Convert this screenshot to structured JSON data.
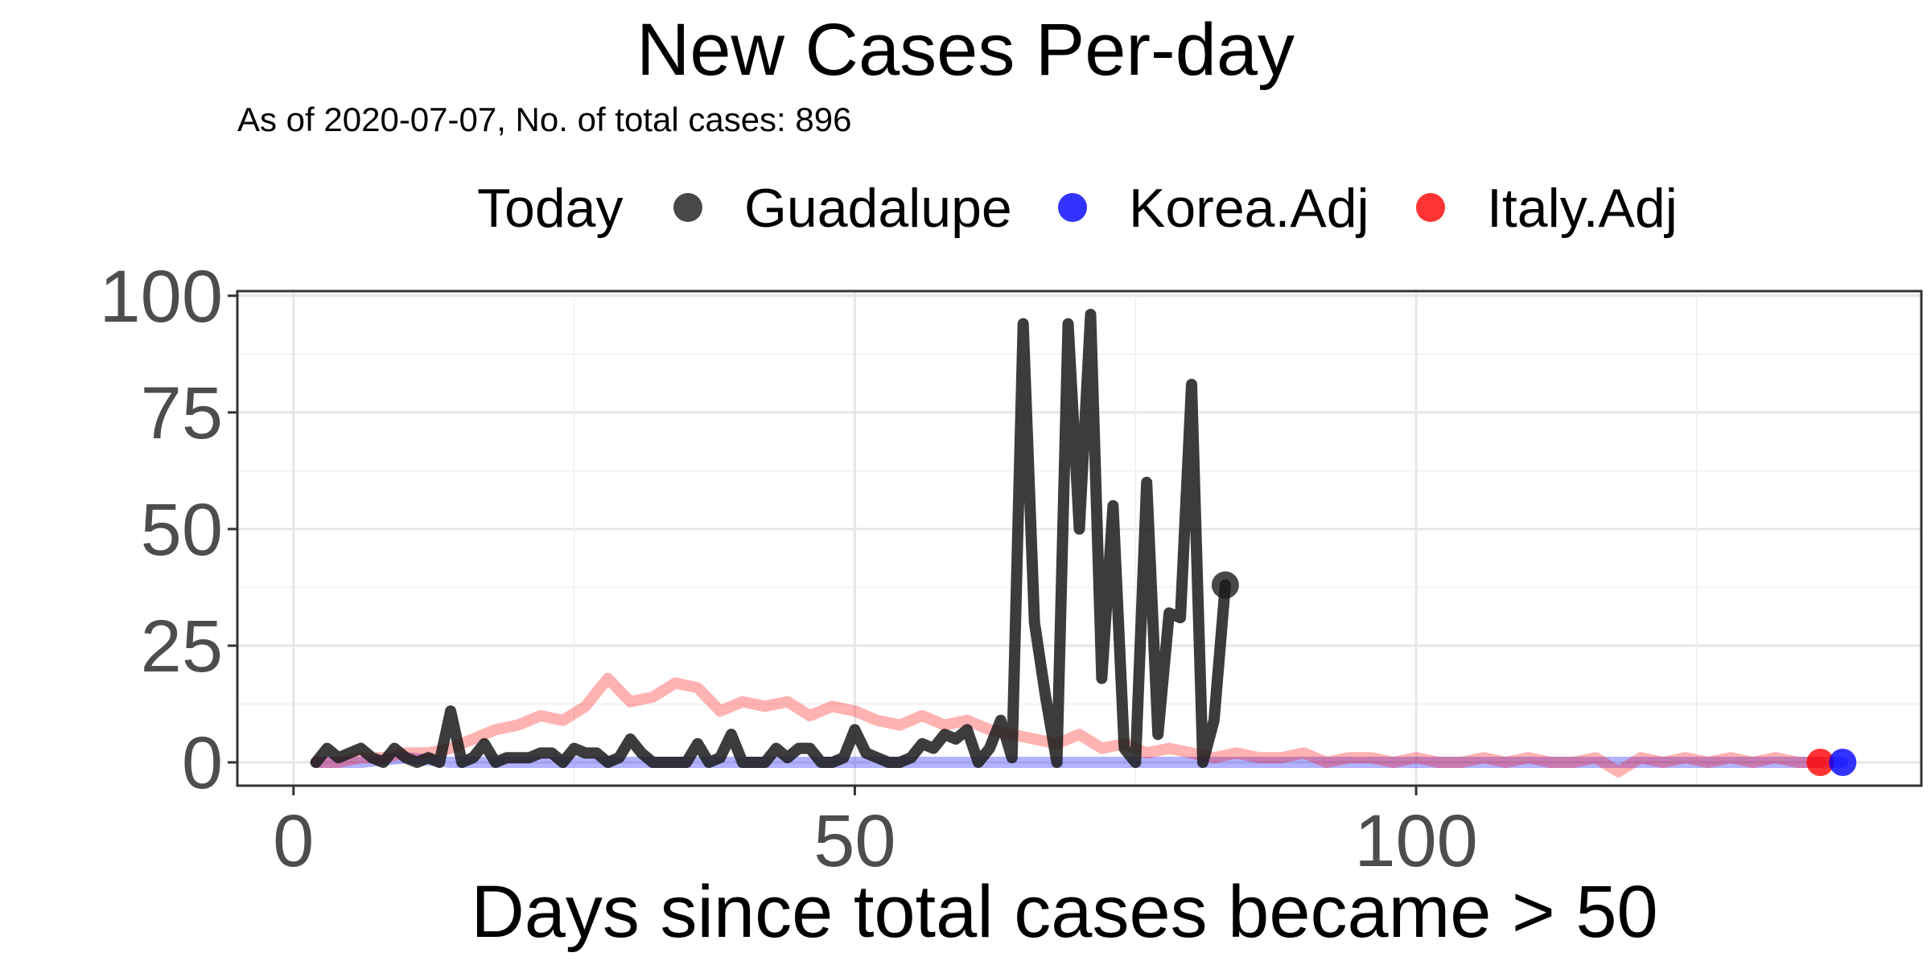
{
  "chart_data": {
    "type": "line",
    "title": "New Cases Per-day",
    "subtitle": "As of 2020-07-07, No. of total cases: 896",
    "xlabel": "Days since total cases became > 50",
    "ylabel": "",
    "xlim": [
      -5,
      145
    ],
    "ylim": [
      -5,
      101
    ],
    "x_ticks": [
      0,
      50,
      100
    ],
    "y_ticks": [
      0,
      25,
      50,
      75,
      100
    ],
    "grid": true,
    "legend": {
      "position": "top",
      "title": "Today",
      "entries": [
        "Guadalupe",
        "Korea.Adj",
        "Italy.Adj"
      ]
    },
    "series": [
      {
        "name": "Guadalupe",
        "color": "#1a1a1a",
        "x": [
          2,
          3,
          4,
          5,
          6,
          7,
          8,
          9,
          10,
          11,
          12,
          13,
          14,
          15,
          16,
          17,
          18,
          19,
          20,
          21,
          22,
          23,
          24,
          25,
          26,
          27,
          28,
          29,
          30,
          31,
          32,
          33,
          34,
          35,
          36,
          37,
          38,
          39,
          40,
          41,
          42,
          43,
          44,
          45,
          46,
          47,
          48,
          49,
          50,
          51,
          52,
          53,
          54,
          55,
          56,
          57,
          58,
          59,
          60,
          61,
          62,
          63,
          64,
          65,
          66,
          67,
          68,
          69,
          70,
          71,
          72,
          73,
          74,
          75,
          76,
          77,
          78,
          79,
          80,
          81,
          82,
          83
        ],
        "values": [
          0,
          3,
          1,
          2,
          3,
          1,
          0,
          3,
          1,
          0,
          1,
          0,
          11,
          0,
          1,
          4,
          0,
          1,
          1,
          1,
          2,
          2,
          0,
          3,
          2,
          2,
          0,
          1,
          5,
          2,
          0,
          0,
          0,
          0,
          4,
          0,
          1,
          6,
          0,
          0,
          0,
          3,
          1,
          3,
          3,
          0,
          0,
          1,
          7,
          2,
          1,
          0,
          0,
          1,
          4,
          3,
          6,
          5,
          7,
          0,
          3,
          9,
          1,
          94,
          30,
          14,
          0,
          94,
          50,
          96,
          18,
          55,
          3,
          0,
          60,
          6,
          32,
          31,
          81,
          0,
          9,
          38
        ],
        "today": [
          83,
          38
        ]
      },
      {
        "name": "Korea.Adj",
        "color": "#0000ff",
        "x": [
          2,
          6,
          10,
          14,
          18,
          22,
          26,
          30,
          34,
          38,
          42,
          46,
          50,
          54,
          58,
          62,
          66,
          70,
          74,
          78,
          82,
          86,
          90,
          94,
          98,
          102,
          106,
          110,
          114,
          118,
          122,
          126,
          130,
          134,
          138
        ],
        "values": [
          0,
          0,
          1,
          0,
          0,
          0,
          0,
          0,
          0,
          0,
          0,
          0,
          0,
          0,
          0,
          0,
          0,
          0,
          0,
          0,
          0,
          0,
          0,
          0,
          0,
          0,
          0,
          0,
          0,
          0,
          0,
          0,
          0,
          0,
          0
        ],
        "today": [
          138,
          0
        ]
      },
      {
        "name": "Italy.Adj",
        "color": "#ff0000",
        "x": [
          2,
          4,
          6,
          8,
          10,
          12,
          14,
          16,
          18,
          20,
          22,
          24,
          26,
          28,
          30,
          32,
          34,
          36,
          38,
          40,
          42,
          44,
          46,
          48,
          50,
          52,
          54,
          56,
          58,
          60,
          62,
          64,
          66,
          68,
          70,
          72,
          74,
          76,
          78,
          80,
          82,
          84,
          86,
          88,
          90,
          92,
          94,
          96,
          98,
          100,
          102,
          104,
          106,
          108,
          110,
          112,
          114,
          116,
          118,
          120,
          122,
          124,
          126,
          128,
          130,
          132,
          134,
          136
        ],
        "values": [
          0,
          0,
          1,
          1,
          2,
          2,
          3,
          5,
          7,
          8,
          10,
          9,
          12,
          18,
          13,
          14,
          17,
          16,
          11,
          13,
          12,
          13,
          10,
          12,
          11,
          9,
          8,
          10,
          8,
          9,
          7,
          6,
          5,
          4,
          6,
          3,
          4,
          2,
          3,
          2,
          1,
          2,
          1,
          1,
          2,
          0,
          1,
          1,
          0,
          1,
          0,
          0,
          1,
          0,
          1,
          0,
          0,
          1,
          -2,
          1,
          0,
          1,
          0,
          1,
          0,
          1,
          0,
          0
        ],
        "today": [
          136,
          0
        ]
      }
    ]
  }
}
